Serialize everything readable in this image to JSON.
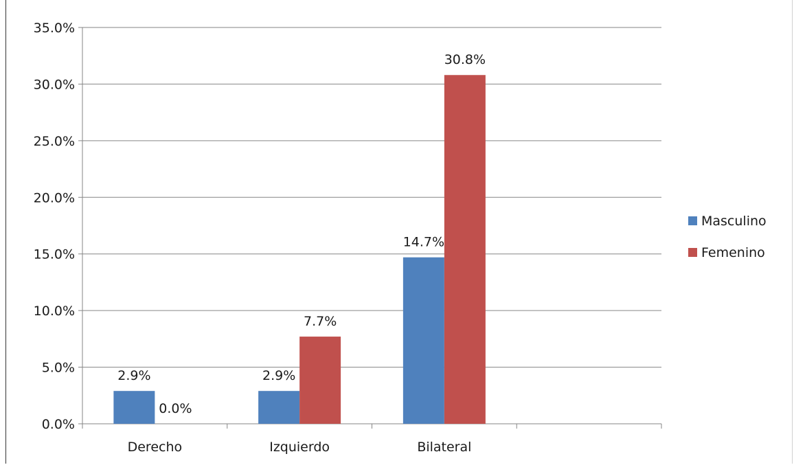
{
  "chart_data": {
    "type": "bar",
    "title": "",
    "xlabel": "",
    "ylabel": "",
    "categories": [
      "Derecho",
      "Izquierdo",
      "Bilateral",
      ""
    ],
    "series": [
      {
        "name": "Masculino",
        "color": "#4f81bd",
        "values": [
          2.9,
          2.9,
          14.7,
          null
        ],
        "labels": [
          "2.9%",
          "2.9%",
          "14.7%",
          null
        ]
      },
      {
        "name": "Femenino",
        "color": "#c0504d",
        "values": [
          0.0,
          7.7,
          30.8,
          null
        ],
        "labels": [
          "0.0%",
          "7.7%",
          "30.8%",
          null
        ]
      }
    ],
    "ylim": [
      0,
      35
    ],
    "yticks": [
      0,
      5,
      10,
      15,
      20,
      25,
      30,
      35
    ],
    "ytick_labels": [
      "0.0%",
      "5.0%",
      "10.0%",
      "15.0%",
      "20.0%",
      "25.0%",
      "30.0%",
      "35.0%"
    ],
    "grid": true,
    "legend_position": "right"
  }
}
